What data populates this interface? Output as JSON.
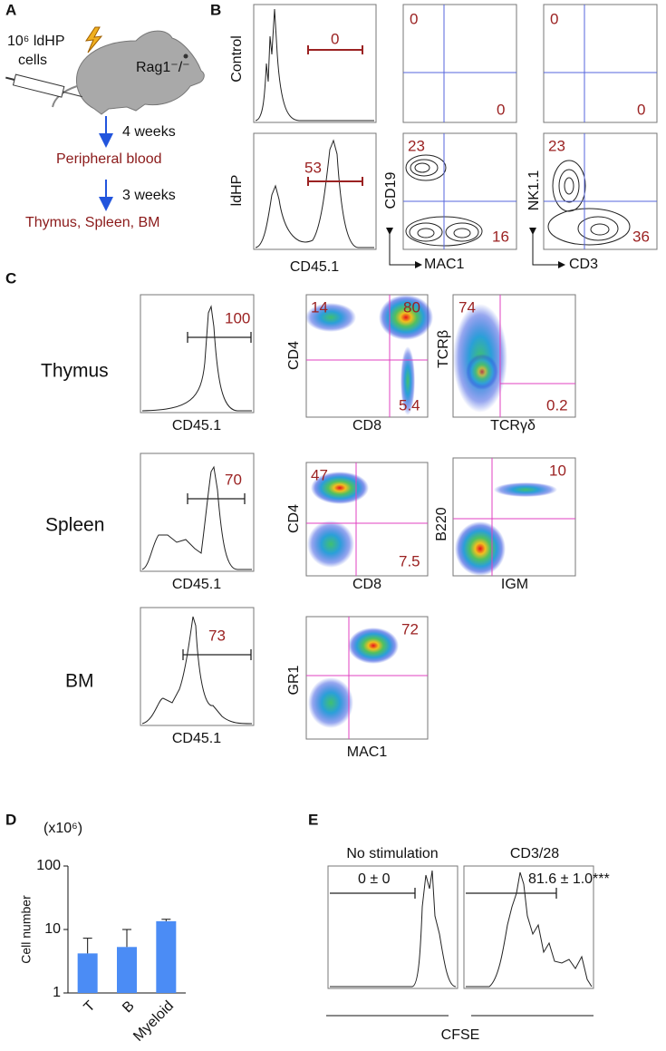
{
  "panel_labels": {
    "a": "A",
    "b": "B",
    "c": "C",
    "d": "D",
    "e": "E"
  },
  "panel_a": {
    "dose": "10⁶ ldHP",
    "cells": "cells",
    "mouse": "Rag1⁻/⁻",
    "step1": "4 weeks",
    "site1": "Peripheral blood",
    "step2": "3 weeks",
    "site2": "Thymus, Spleen, BM"
  },
  "panel_b": {
    "rows": [
      "Control",
      "ldHP"
    ],
    "hist_axis": "CD45.1",
    "hist_gates": [
      0,
      53
    ],
    "plots": [
      {
        "y": "CD19",
        "x": "MAC1",
        "control": {
          "top_left": 0,
          "bottom_right": 0
        },
        "ldhp": {
          "top_left": 23,
          "bottom_right": 16
        }
      },
      {
        "y": "NK1.1",
        "x": "CD3",
        "control": {
          "top_left": 0,
          "bottom_right": 0
        },
        "ldhp": {
          "top_left": 23,
          "bottom_right": 36
        }
      }
    ]
  },
  "panel_c": {
    "rows": [
      {
        "name": "Thymus",
        "hist_axis": "CD45.1",
        "hist_gate": 100,
        "plots": [
          {
            "y": "CD4",
            "x": "CD8",
            "top_left": 14,
            "top_right": 80,
            "bottom_right": 5.4
          },
          {
            "y": "TCRβ",
            "x": "TCRγδ",
            "top_left": 74,
            "bottom_right": 0.2
          }
        ]
      },
      {
        "name": "Spleen",
        "hist_axis": "CD45.1",
        "hist_gate": 70,
        "plots": [
          {
            "y": "CD4",
            "x": "CD8",
            "top_left": 47,
            "bottom_right": 7.5
          },
          {
            "y": "B220",
            "x": "IGM",
            "top_right": 10
          }
        ]
      },
      {
        "name": "BM",
        "hist_axis": "CD45.1",
        "hist_gate": 73,
        "plots": [
          {
            "y": "GR1",
            "x": "MAC1",
            "top_right": 72
          }
        ]
      }
    ]
  },
  "panel_d": {
    "type": "bar",
    "unit": "(x10⁶)",
    "ylabel": "Cell number",
    "categories": [
      "T",
      "B",
      "Myeloid"
    ],
    "values": [
      4.2,
      5.3,
      13.5
    ],
    "errors": [
      3.1,
      4.7,
      1.0
    ],
    "ylim": [
      1,
      100
    ],
    "yticks": [
      1,
      10,
      100
    ],
    "log_scale": true,
    "color": "#4b8cf5"
  },
  "panel_e": {
    "titles": [
      "No stimulation",
      "CD3/28"
    ],
    "gates": [
      "0 ± 0",
      "81.6 ± 1.0***"
    ],
    "xlabel": "CFSE"
  }
}
